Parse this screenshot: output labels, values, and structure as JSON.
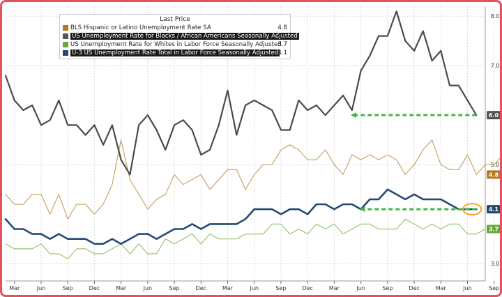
{
  "legend": {
    "title": "Last Price",
    "items": [
      {
        "name": "BLS Hispanic or Latino Unemployment Rate SA",
        "value": "4.8",
        "color": "#c8a46a",
        "swatch": "#b5781f"
      },
      {
        "name": "US Unemployment Rate for Blacks / African Americans Seasonally Adjusted",
        "value": "6.0",
        "color": "#4a4a4a",
        "swatch": "#555555"
      },
      {
        "name": "US Unemployment Rate for Whites in Labor Force Seasonally Adjusted",
        "value": "3.7",
        "color": "#98c46e",
        "swatch": "#6aa83a"
      },
      {
        "name": "U-3 US Unemployment Rate Total in Labor Force Seasonally Adjusted",
        "value": "4.1",
        "color": "#234a73",
        "swatch": "#234a73"
      }
    ]
  },
  "chart_data": {
    "type": "line",
    "x_tick_labels": [
      "Mar",
      "Jun",
      "Sep",
      "Dec",
      "Mar",
      "Jun",
      "Sep",
      "Dec",
      "Mar",
      "Jun",
      "Sep",
      "Dec",
      "Mar",
      "Jun",
      "Sep",
      "Dec",
      "Mar",
      "Jun",
      "Sep"
    ],
    "y_tick_labels": [
      "3.0",
      "5.0",
      "7.0",
      "8.0"
    ],
    "ylim": [
      2.65,
      8.2
    ],
    "grid": true,
    "legend_position": "top-left",
    "series": [
      {
        "name": "BLS Hispanic or Latino Unemployment Rate SA",
        "color": "#c8a46a",
        "width": 1.2,
        "values": [
          4.4,
          4.2,
          4.2,
          4.4,
          4.4,
          4.0,
          4.4,
          3.9,
          4.2,
          4.2,
          4.0,
          4.2,
          4.6,
          5.5,
          4.7,
          4.4,
          4.1,
          4.3,
          4.4,
          4.8,
          4.6,
          4.7,
          4.8,
          4.5,
          4.7,
          4.9,
          4.9,
          4.5,
          4.8,
          5.0,
          5.0,
          5.3,
          5.4,
          5.3,
          5.1,
          5.1,
          5.3,
          5.0,
          4.8,
          5.2,
          5.1,
          5.2,
          5.1,
          5.2,
          5.1,
          4.8,
          5.0,
          5.3,
          5.5,
          5.0,
          4.9,
          4.9,
          5.2,
          4.8,
          5.0,
          5.0,
          5.2,
          4.6,
          4.8
        ]
      },
      {
        "name": "US Unemployment Rate for Blacks / African Americans Seasonally Adjusted",
        "color": "#4a4a4a",
        "width": 2.2,
        "values": [
          6.8,
          6.3,
          6.1,
          6.2,
          5.8,
          5.9,
          6.3,
          5.8,
          5.8,
          5.6,
          5.8,
          5.4,
          5.8,
          5.1,
          4.8,
          5.8,
          6.0,
          5.7,
          5.3,
          5.8,
          5.9,
          5.7,
          5.2,
          5.3,
          5.8,
          6.5,
          5.6,
          6.2,
          6.3,
          6.2,
          6.1,
          5.7,
          5.7,
          6.3,
          6.1,
          6.2,
          6.0,
          6.2,
          6.4,
          6.1,
          6.9,
          7.2,
          7.6,
          7.6,
          8.1,
          7.5,
          7.3,
          7.7,
          7.1,
          7.3,
          6.6,
          6.6,
          6.3,
          6.0
        ]
      },
      {
        "name": "US Unemployment Rate for Whites in Labor Force Seasonally Adjusted",
        "color": "#98c46e",
        "width": 1.2,
        "values": [
          3.4,
          3.3,
          3.3,
          3.3,
          3.4,
          3.2,
          3.2,
          3.1,
          3.3,
          3.3,
          3.2,
          3.2,
          3.3,
          3.4,
          3.2,
          3.4,
          3.2,
          3.2,
          3.5,
          3.4,
          3.5,
          3.6,
          3.4,
          3.6,
          3.5,
          3.5,
          3.5,
          3.6,
          3.6,
          3.6,
          3.8,
          3.8,
          3.6,
          3.7,
          3.6,
          3.8,
          3.7,
          3.8,
          3.6,
          3.7,
          3.8,
          3.8,
          3.7,
          3.7,
          3.7,
          3.9,
          3.8,
          3.7,
          3.8,
          3.7,
          3.8,
          3.8,
          3.6,
          3.6,
          3.7
        ]
      },
      {
        "name": "U-3 US Unemployment Rate Total in Labor Force Seasonally Adjusted",
        "color": "#234a73",
        "width": 2.6,
        "values": [
          3.9,
          3.7,
          3.7,
          3.6,
          3.6,
          3.5,
          3.6,
          3.5,
          3.5,
          3.5,
          3.4,
          3.4,
          3.5,
          3.4,
          3.5,
          3.6,
          3.6,
          3.5,
          3.6,
          3.7,
          3.7,
          3.8,
          3.7,
          3.8,
          3.8,
          3.8,
          3.8,
          3.9,
          4.1,
          4.1,
          4.1,
          4.0,
          4.1,
          4.1,
          4.0,
          4.2,
          4.2,
          4.1,
          4.2,
          4.2,
          4.1,
          4.3,
          4.3,
          4.5,
          4.4,
          4.3,
          4.4,
          4.3,
          4.3,
          4.3,
          4.2,
          4.1,
          4.1,
          4.1
        ]
      }
    ],
    "annotations": [
      {
        "type": "dashed-arrow",
        "color": "#3dbb3d",
        "series": 1,
        "from_index": 53,
        "to_index": 39,
        "y": 6.0
      },
      {
        "type": "dashed-arrow",
        "color": "#3dbb3d",
        "series": 3,
        "from_index": 53,
        "to_index": 40,
        "y": 4.1
      },
      {
        "type": "circle",
        "color": "#f5a623",
        "series": 3,
        "index": 53,
        "y": 4.1
      }
    ],
    "badges": [
      {
        "label": "6.0",
        "y": 6.0,
        "bg": "#555555",
        "fg": "#ffffff"
      },
      {
        "label": "4.8",
        "y": 4.8,
        "bg": "#b5781f",
        "fg": "#ffffff"
      },
      {
        "label": "4.1",
        "y": 4.1,
        "bg": "#234a73",
        "fg": "#ffffff"
      },
      {
        "label": "3.7",
        "y": 3.7,
        "bg": "#6aa83a",
        "fg": "#ffffff"
      }
    ]
  }
}
